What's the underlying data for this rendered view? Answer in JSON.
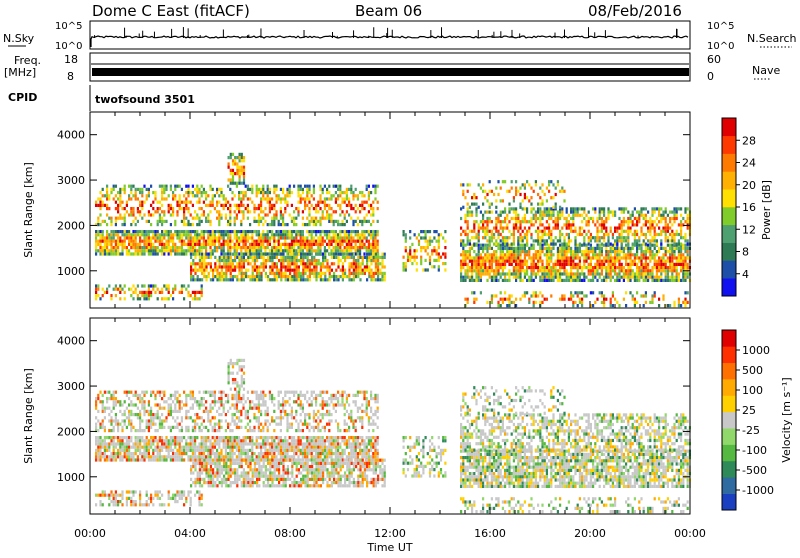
{
  "header": {
    "station": "Dome C East (fitACF)",
    "beam": "Beam 06",
    "date": "08/Feb/2016"
  },
  "top_panels": {
    "nsky_label": "N.Sky",
    "nsky_ticks": [
      "10^5",
      "10^0"
    ],
    "nsearch_label": "N.Search",
    "nsearch_ticks": [
      "10^5",
      "10^0"
    ],
    "freq_label": "Freq.",
    "freq_unit": "[MHz]",
    "freq_ticks": [
      "18",
      "8"
    ],
    "nave_label": "Nave",
    "nave_ticks": [
      "60",
      "0"
    ],
    "cpid_label": "CPID",
    "cpid_value": "twofsound 3501"
  },
  "x_axis": {
    "label": "Time UT",
    "ticks": [
      "00:00",
      "04:00",
      "08:00",
      "12:00",
      "16:00",
      "20:00",
      "00:00"
    ]
  },
  "power_panel": {
    "ylabel": "Slant Range [km]",
    "yticks": [
      "1000",
      "2000",
      "3000",
      "4000"
    ],
    "colorbar_label": "Power [dB]",
    "colorbar_ticks": [
      "4",
      "8",
      "12",
      "16",
      "20",
      "24",
      "28"
    ],
    "colors": [
      "#1010f0",
      "#1d4fa8",
      "#2e7a55",
      "#4fa070",
      "#7fcc2a",
      "#ffe000",
      "#ffb000",
      "#ff7a00",
      "#ff3a00",
      "#e00000"
    ]
  },
  "velocity_panel": {
    "ylabel": "Slant Range [km]",
    "yticks": [
      "1000",
      "2000",
      "3000",
      "4000"
    ],
    "colorbar_label": "Velocity [m s⁻¹]",
    "colorbar_ticks": [
      "1000",
      "500",
      "100",
      "25",
      "-25",
      "-100",
      "-500",
      "-1000"
    ],
    "colors": [
      "#1a3fc0",
      "#2f6aa0",
      "#2f8a5a",
      "#55b840",
      "#90d86a",
      "#c8c8c8",
      "#ffd000",
      "#ffaa00",
      "#ff7000",
      "#ff3000",
      "#e00000"
    ]
  },
  "chart_data": {
    "type": "heatmap",
    "x_range_hours": [
      0,
      24
    ],
    "y_range_km": [
      180,
      4500
    ],
    "power_colorbar_range_db": [
      0,
      30
    ],
    "velocity_colorbar_range_ms": [
      -1000,
      1000
    ],
    "frequency_mhz_approx": 10,
    "nave_approx": 20
  }
}
